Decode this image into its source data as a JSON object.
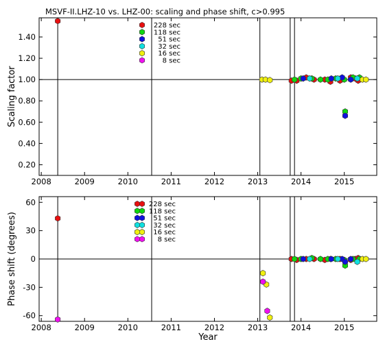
{
  "figure": {
    "title": "MSVF-II.LHZ-10 vs. LHZ-00: scaling and phase shift, c>0.995",
    "xlabel": "Year"
  },
  "colors": {
    "228 sec": "#e81010",
    "118 sec": "#10d810",
    "51 sec": "#1010e0",
    "32 sec": "#10e0e0",
    "16 sec": "#f0f010",
    "8 sec": "#f010f0"
  },
  "chart_data": [
    {
      "type": "scatter",
      "ylabel": "Scaling factor",
      "xlim": [
        2007.95,
        2015.75
      ],
      "ylim": [
        0.1,
        1.58
      ],
      "yticks": [
        "0.20",
        "0.40",
        "0.60",
        "0.80",
        "1.00",
        "1.20",
        "1.40"
      ],
      "ytick_values": [
        0.2,
        0.4,
        0.6,
        0.8,
        1.0,
        1.2,
        1.4
      ],
      "xticks": [
        "2008",
        "2009",
        "2010",
        "2011",
        "2012",
        "2013",
        "2014",
        "2015"
      ],
      "xtick_values": [
        2008,
        2009,
        2010,
        2011,
        2012,
        2013,
        2014,
        2015
      ],
      "reference_line": 1.0,
      "vertical_lines": [
        2008.38,
        2010.55,
        2013.05,
        2013.75,
        2013.85
      ],
      "legend": {
        "position": "top-left",
        "entries": [
          "228  sec",
          "118  sec",
          "51  sec",
          "32  sec",
          "16  sec",
          "8  sec"
        ]
      },
      "series": [
        {
          "name": "228 sec",
          "x": [
            2008.38,
            2013.78,
            2013.9,
            2014.12,
            2014.3,
            2014.55,
            2014.68,
            2014.9,
            2015.15,
            2015.25,
            2015.32
          ],
          "y": [
            1.55,
            0.99,
            0.99,
            1.02,
            1.0,
            1.0,
            0.98,
            0.99,
            1.02,
            1.01,
            0.99
          ]
        },
        {
          "name": "118 sec",
          "x": [
            2013.85,
            2014.0,
            2014.25,
            2014.45,
            2014.62,
            2014.8,
            2015.0,
            2015.02,
            2015.2,
            2015.35
          ],
          "y": [
            1.0,
            1.01,
            1.01,
            1.0,
            1.0,
            1.01,
            1.0,
            0.7,
            1.02,
            1.02
          ]
        },
        {
          "name": "51 sec",
          "x": [
            2014.05,
            2014.7,
            2014.95,
            2015.02,
            2015.15
          ],
          "y": [
            1.01,
            1.01,
            1.02,
            0.66,
            1.0
          ]
        },
        {
          "name": "32 sec",
          "x": [
            2014.2,
            2014.85,
            2015.3
          ],
          "y": [
            1.01,
            1.01,
            1.01
          ]
        },
        {
          "name": "16 sec",
          "x": [
            2013.1,
            2013.18,
            2013.28,
            2015.42,
            2015.5
          ],
          "y": [
            1.0,
            1.0,
            0.995,
            1.0,
            1.0
          ]
        },
        {
          "name": "8 sec",
          "x": [],
          "y": []
        }
      ]
    },
    {
      "type": "scatter",
      "ylabel": "Phase shift (degrees)",
      "xlim": [
        2007.95,
        2015.75
      ],
      "ylim": [
        -66,
        66
      ],
      "yticks": [
        "-60",
        "-30",
        "0",
        "30",
        "60"
      ],
      "ytick_values": [
        -60,
        -30,
        0,
        30,
        60
      ],
      "xticks": [
        "2008",
        "2009",
        "2010",
        "2011",
        "2012",
        "2013",
        "2014",
        "2015"
      ],
      "xtick_values": [
        2008,
        2009,
        2010,
        2011,
        2012,
        2013,
        2014,
        2015
      ],
      "reference_line": 0,
      "vertical_lines": [
        2008.38,
        2010.55,
        2013.05,
        2013.75,
        2013.85
      ],
      "legend": {
        "position": "top-left",
        "entries": [
          "228  sec",
          "118  sec",
          "51  sec",
          "32  sec",
          "16  sec",
          "8  sec"
        ]
      },
      "series": [
        {
          "name": "228 sec",
          "x": [
            2008.38,
            2013.78,
            2013.9,
            2014.12,
            2014.3,
            2014.55,
            2014.68,
            2014.9,
            2015.15,
            2015.25,
            2015.32
          ],
          "y": [
            43,
            0,
            -1,
            0,
            0,
            -1,
            0,
            0,
            -1,
            0,
            1
          ]
        },
        {
          "name": "118 sec",
          "x": [
            2013.85,
            2014.0,
            2014.25,
            2014.45,
            2014.62,
            2014.8,
            2015.0,
            2015.02,
            2015.2,
            2015.35
          ],
          "y": [
            0,
            0,
            1,
            0,
            0,
            0,
            -1,
            -7,
            0,
            0
          ]
        },
        {
          "name": "51 sec",
          "x": [
            2014.05,
            2014.7,
            2014.95,
            2015.02,
            2015.15
          ],
          "y": [
            0,
            0,
            0,
            -3,
            0
          ]
        },
        {
          "name": "32 sec",
          "x": [
            2014.2,
            2014.85,
            2015.3
          ],
          "y": [
            0,
            0,
            -3
          ]
        },
        {
          "name": "16 sec",
          "x": [
            2013.12,
            2013.2,
            2013.28,
            2015.42,
            2015.5
          ],
          "y": [
            -15,
            -27,
            -62,
            0,
            0
          ]
        },
        {
          "name": "8 sec",
          "x": [
            2008.38,
            2013.12,
            2013.22
          ],
          "y": [
            -64,
            -24,
            -55
          ]
        }
      ]
    }
  ]
}
